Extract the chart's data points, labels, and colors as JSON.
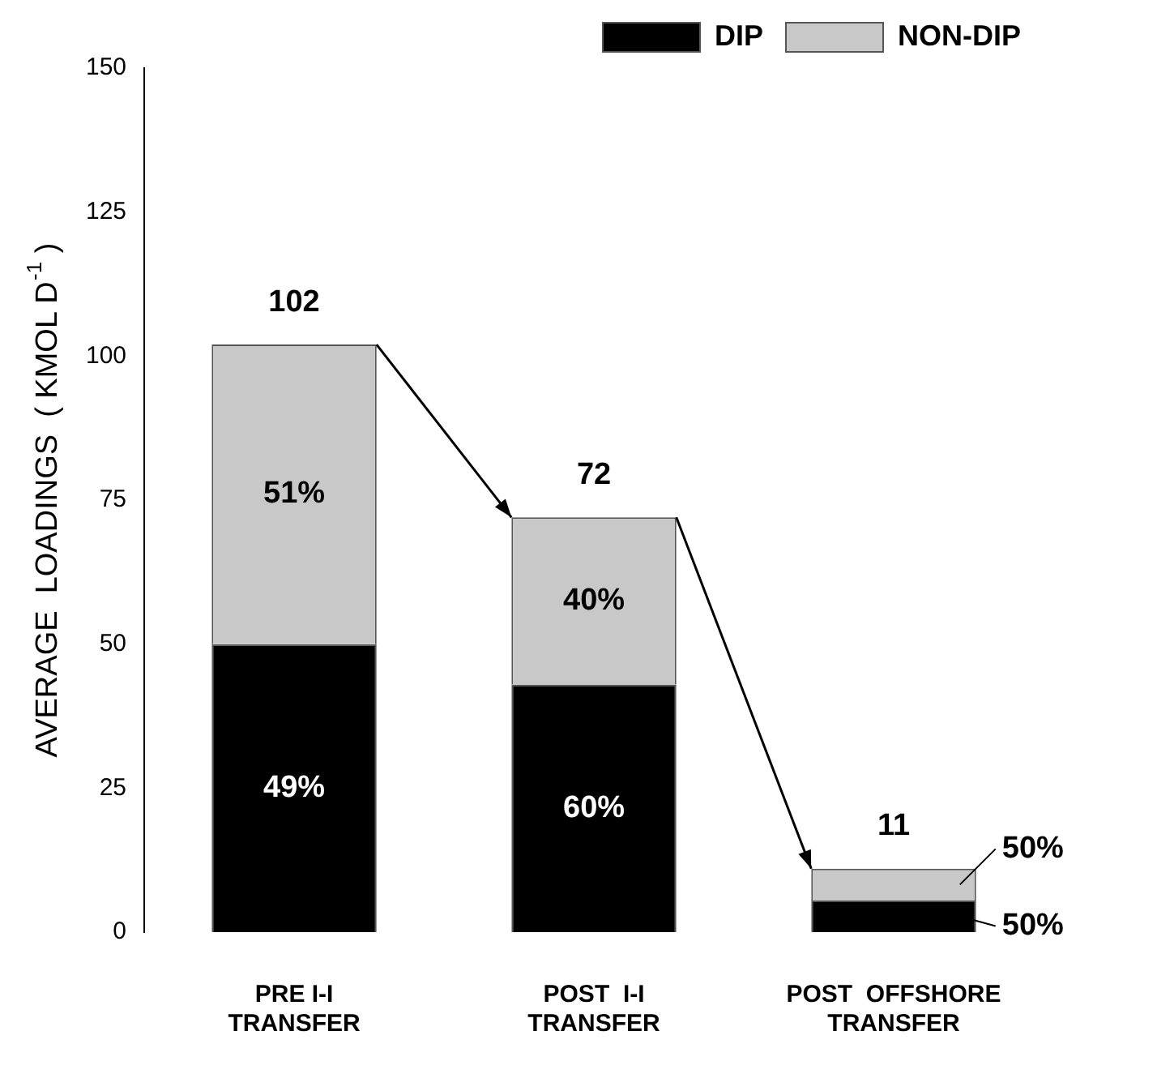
{
  "chart_data": {
    "type": "bar",
    "stacked": true,
    "ylabel": "AVERAGE  LOADINGS  ( KMOL D$^{-1}$ )",
    "categories": [
      "PRE I-I TRANSFER",
      "POST  I-I TRANSFER",
      "POST  OFFSHORE TRANSFER"
    ],
    "series": [
      {
        "name": "DIP",
        "color": "#000000",
        "values": [
          50,
          43,
          5.5
        ]
      },
      {
        "name": "NON-DIP",
        "color": "#c8c8c8",
        "values": [
          52,
          29,
          5.5
        ]
      }
    ],
    "annotations": [
      "49%",
      "51%",
      "60%",
      "40%",
      "50%",
      "50%"
    ],
    "totals": [
      "102",
      "72",
      "11"
    ],
    "ylim": [
      0,
      150
    ],
    "yticks": [
      0,
      25,
      50,
      75,
      100,
      125,
      150
    ],
    "grid": false,
    "legend": "top right"
  }
}
